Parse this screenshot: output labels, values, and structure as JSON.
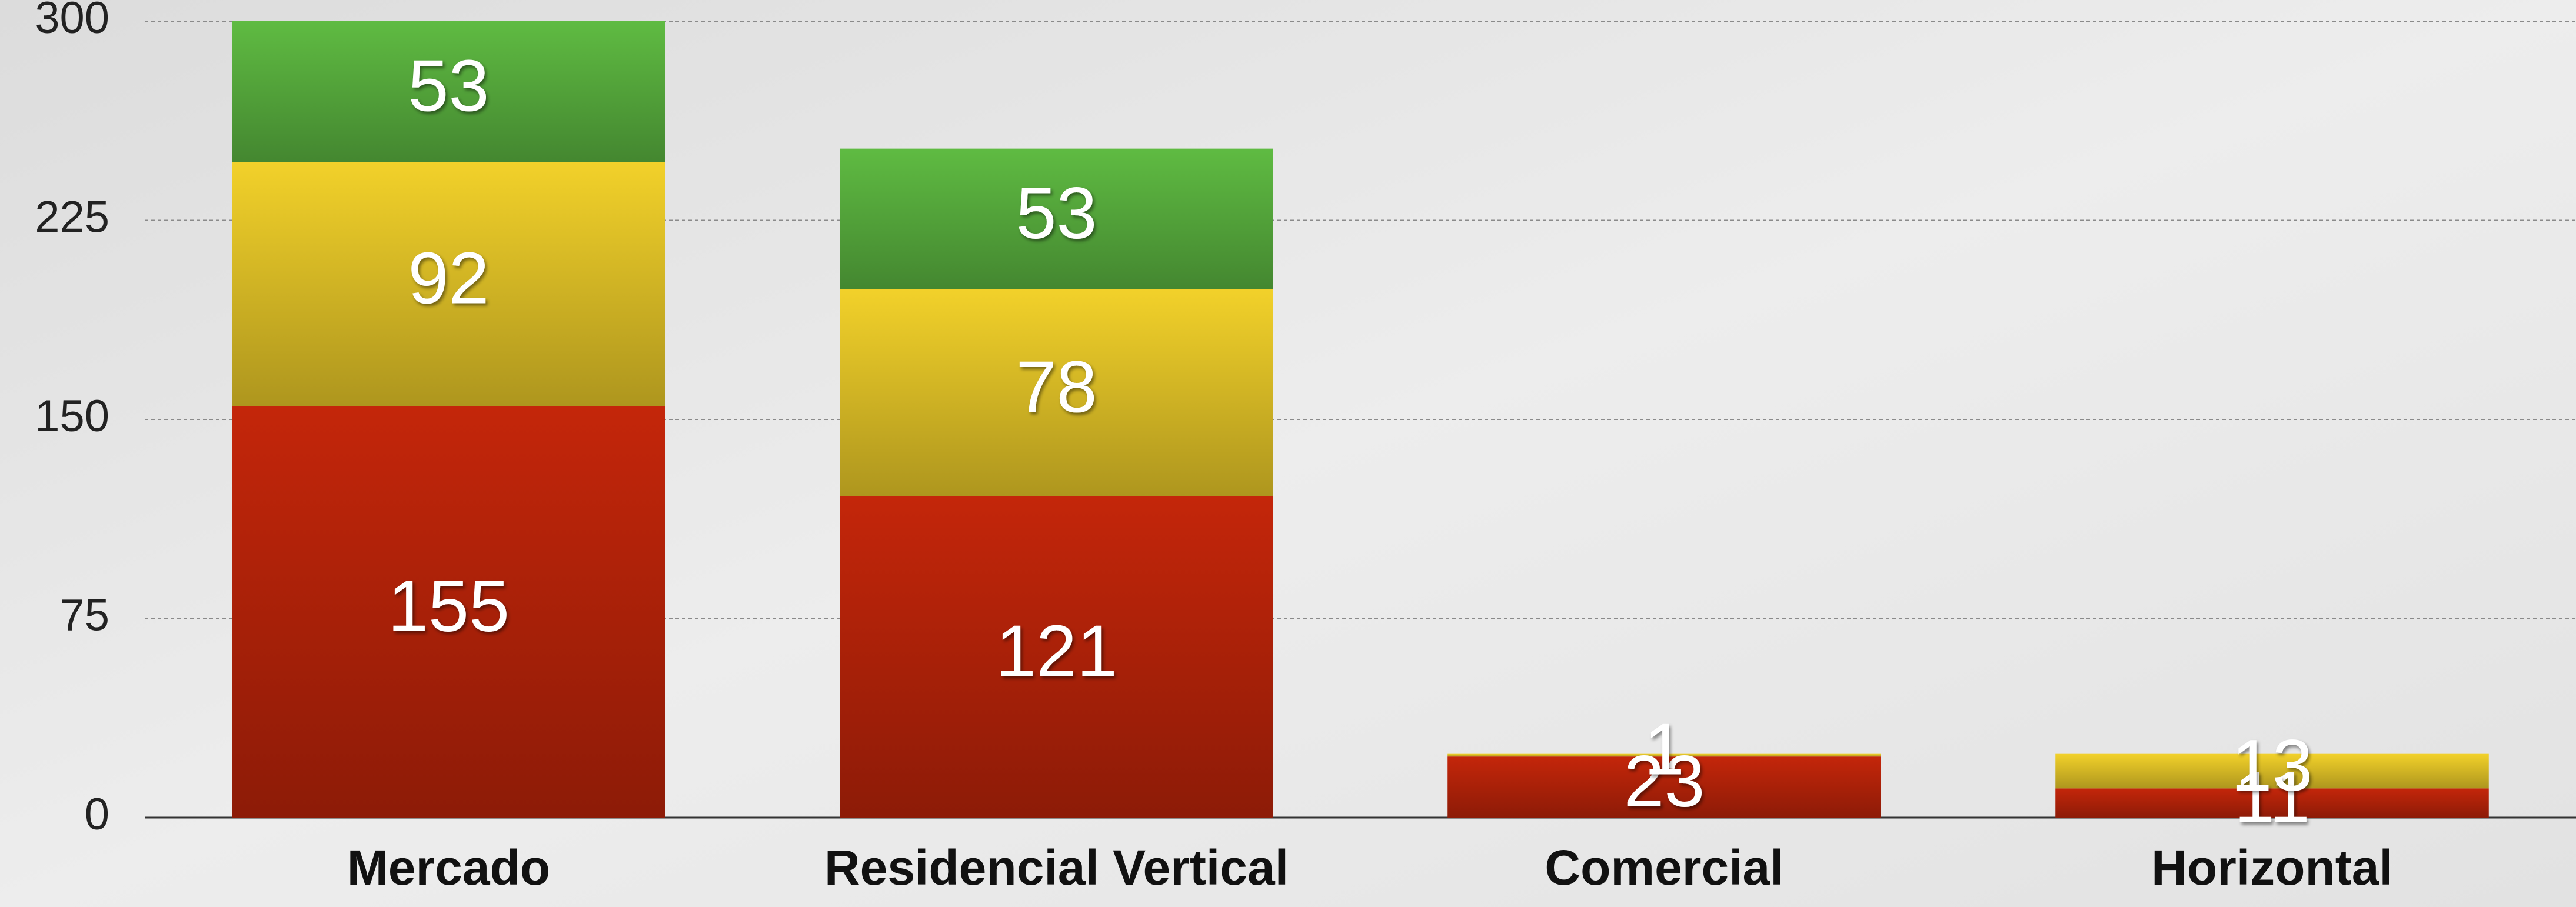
{
  "chart_data": {
    "type": "stacked_bar",
    "categories": [
      "Mercado",
      "Residencial Vertical",
      "Comercial",
      "Horizontal"
    ],
    "series": [
      {
        "color": "#c4260a",
        "values": [
          155,
          121,
          23,
          11
        ]
      },
      {
        "color": "#f2d12a",
        "values": [
          92,
          78,
          1,
          13
        ]
      },
      {
        "color": "#5fbb42",
        "values": [
          53,
          53,
          null,
          null
        ]
      }
    ],
    "ylim": [
      0,
      300
    ],
    "yticks": [
      0,
      75,
      150,
      225,
      300
    ],
    "grid": true
  }
}
